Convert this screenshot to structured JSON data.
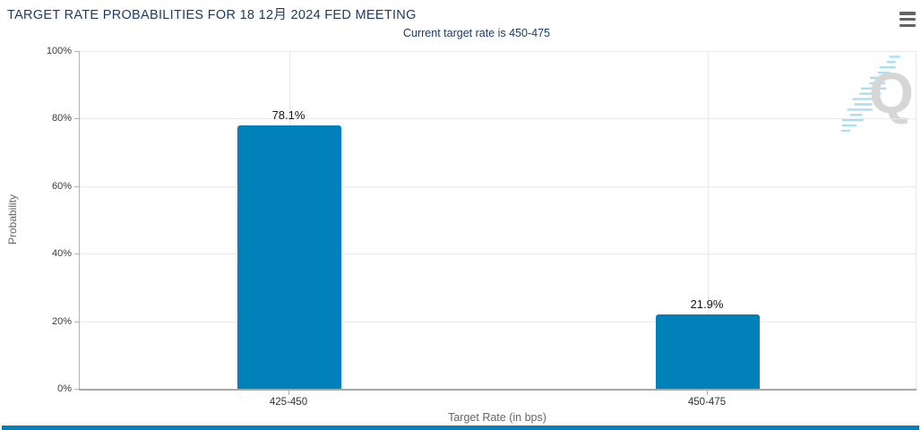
{
  "header": {
    "title": "TARGET RATE PROBABILITIES FOR 18 12月 2024 FED MEETING",
    "subtitle": "Current target rate is 450-475"
  },
  "menu": {
    "icon": "hamburger-icon"
  },
  "watermark": {
    "letter": "Q"
  },
  "colors": {
    "title_navy": "#1e3a66",
    "bar_blue": "#0081ba",
    "grid_gray": "#e9e9e9",
    "axis_gray": "#b3b3b3",
    "label_gray": "#666666",
    "watermark_gray": "#d6d6d6",
    "watermark_blue": "#aadef2"
  },
  "chart_data": {
    "type": "bar",
    "title": "TARGET RATE PROBABILITIES FOR 18 12月 2024 FED MEETING",
    "subtitle": "Current target rate is 450-475",
    "categories": [
      "425-450",
      "450-475"
    ],
    "values": [
      78.1,
      21.9
    ],
    "value_labels": [
      "78.1%",
      "21.9%"
    ],
    "xlabel": "Target Rate (in bps)",
    "ylabel": "Probability",
    "ylim": [
      0,
      100
    ],
    "yticks": [
      "0%",
      "20%",
      "40%",
      "60%",
      "80%",
      "100%"
    ],
    "grid": true,
    "legend": false,
    "bar_color": "#0081ba"
  }
}
